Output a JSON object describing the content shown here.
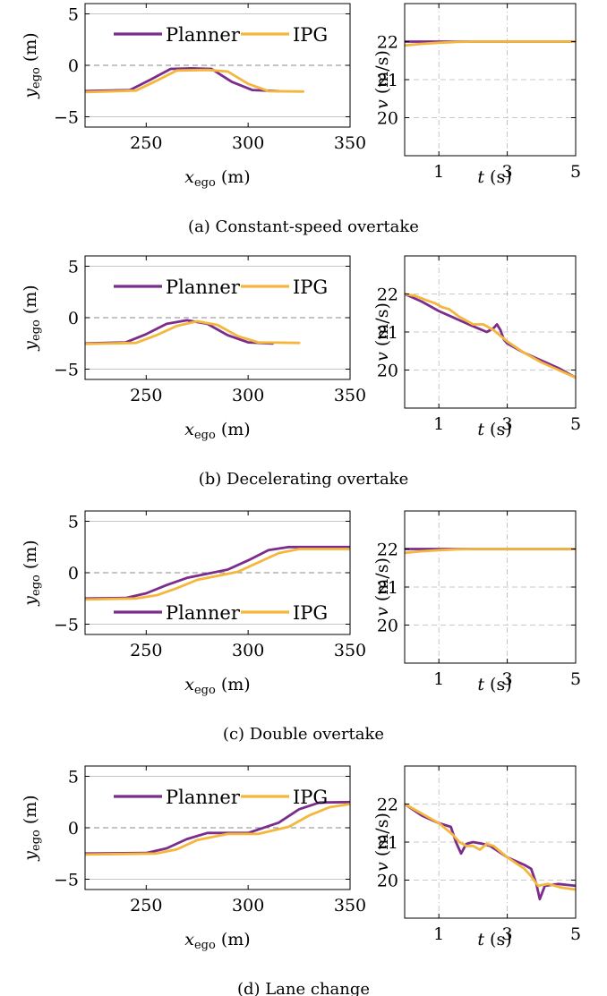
{
  "colors": {
    "planner": "#7B2D8B",
    "ipg": "#F5B63E"
  },
  "legend_labels": [
    "Planner",
    "IPG"
  ],
  "y_axis_label": {
    "main": "y",
    "sub": "ego",
    "unit": "(m)"
  },
  "x_axis_label": {
    "main": "x",
    "sub": "ego",
    "unit": "(m)"
  },
  "v_axis_label": {
    "main": "v",
    "unit": "(m/s)"
  },
  "t_axis_label": {
    "main": "t",
    "unit": "(s)"
  },
  "chart_data": [
    {
      "type": "line",
      "panel": "a",
      "kind": "position",
      "caption": "(a) Constant-speed overtake",
      "xlim": [
        220,
        350
      ],
      "ylim": [
        -6,
        6
      ],
      "xticks": [
        250,
        300,
        350
      ],
      "yticks": [
        -5,
        0,
        5
      ],
      "ytick_labels": [
        "−5",
        "0",
        "5"
      ],
      "legend": "top",
      "series": [
        {
          "name": "Planner",
          "points": [
            [
              220,
              -2.5
            ],
            [
              242,
              -2.4
            ],
            [
              252,
              -1.4
            ],
            [
              262,
              -0.35
            ],
            [
              272,
              -0.3
            ],
            [
              282,
              -0.35
            ],
            [
              292,
              -1.6
            ],
            [
              302,
              -2.4
            ],
            [
              315,
              -2.5
            ]
          ]
        },
        {
          "name": "IPG",
          "points": [
            [
              220,
              -2.6
            ],
            [
              245,
              -2.45
            ],
            [
              255,
              -1.5
            ],
            [
              265,
              -0.5
            ],
            [
              280,
              -0.45
            ],
            [
              290,
              -0.6
            ],
            [
              300,
              -1.8
            ],
            [
              310,
              -2.5
            ],
            [
              327,
              -2.55
            ]
          ]
        }
      ]
    },
    {
      "type": "line",
      "panel": "a",
      "kind": "velocity",
      "xlim": [
        0,
        5
      ],
      "ylim": [
        19,
        23
      ],
      "xticks": [
        1,
        3,
        5
      ],
      "yticks": [
        20,
        21,
        22
      ],
      "series": [
        {
          "name": "Planner",
          "points": [
            [
              0,
              22
            ],
            [
              1,
              22
            ],
            [
              2,
              22
            ],
            [
              3,
              22
            ],
            [
              4,
              22
            ],
            [
              5,
              22
            ]
          ]
        },
        {
          "name": "IPG",
          "points": [
            [
              0,
              21.9
            ],
            [
              0.5,
              21.94
            ],
            [
              1,
              21.97
            ],
            [
              1.5,
              21.99
            ],
            [
              2,
              22
            ],
            [
              3,
              22
            ],
            [
              4,
              22
            ],
            [
              5,
              22
            ]
          ]
        }
      ]
    },
    {
      "type": "line",
      "panel": "b",
      "kind": "position",
      "caption": "(b) Decelerating overtake",
      "xlim": [
        220,
        350
      ],
      "ylim": [
        -6,
        6
      ],
      "xticks": [
        250,
        300,
        350
      ],
      "yticks": [
        -5,
        0,
        5
      ],
      "ytick_labels": [
        "−5",
        "0",
        "5"
      ],
      "legend": "top",
      "series": [
        {
          "name": "Planner",
          "points": [
            [
              220,
              -2.5
            ],
            [
              240,
              -2.4
            ],
            [
              250,
              -1.6
            ],
            [
              260,
              -0.6
            ],
            [
              270,
              -0.25
            ],
            [
              280,
              -0.6
            ],
            [
              290,
              -1.7
            ],
            [
              300,
              -2.4
            ],
            [
              312,
              -2.5
            ]
          ]
        },
        {
          "name": "IPG",
          "points": [
            [
              220,
              -2.55
            ],
            [
              245,
              -2.45
            ],
            [
              255,
              -1.7
            ],
            [
              265,
              -0.8
            ],
            [
              275,
              -0.35
            ],
            [
              285,
              -0.7
            ],
            [
              295,
              -1.8
            ],
            [
              305,
              -2.4
            ],
            [
              325,
              -2.45
            ]
          ]
        }
      ]
    },
    {
      "type": "line",
      "panel": "b",
      "kind": "velocity",
      "xlim": [
        0,
        5
      ],
      "ylim": [
        19,
        23
      ],
      "xticks": [
        1,
        3,
        5
      ],
      "yticks": [
        20,
        21,
        22
      ],
      "series": [
        {
          "name": "Planner",
          "points": [
            [
              0,
              22
            ],
            [
              0.5,
              21.8
            ],
            [
              1,
              21.55
            ],
            [
              1.5,
              21.35
            ],
            [
              2,
              21.15
            ],
            [
              2.4,
              21.0
            ],
            [
              2.6,
              21.1
            ],
            [
              2.7,
              21.2
            ],
            [
              2.8,
              21.05
            ],
            [
              2.9,
              20.8
            ],
            [
              3,
              20.7
            ],
            [
              3.5,
              20.45
            ],
            [
              4,
              20.25
            ],
            [
              4.5,
              20.05
            ],
            [
              5,
              19.8
            ]
          ]
        },
        {
          "name": "IPG",
          "points": [
            [
              0,
              22
            ],
            [
              0.3,
              21.95
            ],
            [
              0.6,
              21.85
            ],
            [
              0.9,
              21.75
            ],
            [
              1.1,
              21.65
            ],
            [
              1.3,
              21.6
            ],
            [
              1.6,
              21.4
            ],
            [
              2,
              21.2
            ],
            [
              2.3,
              21.2
            ],
            [
              2.6,
              21.05
            ],
            [
              3,
              20.75
            ],
            [
              3.5,
              20.45
            ],
            [
              4,
              20.2
            ],
            [
              4.5,
              20.0
            ],
            [
              5,
              19.8
            ]
          ]
        }
      ]
    },
    {
      "type": "line",
      "panel": "c",
      "kind": "position",
      "caption": "(c) Double overtake",
      "xlim": [
        220,
        350
      ],
      "ylim": [
        -6,
        6
      ],
      "xticks": [
        250,
        300,
        350
      ],
      "yticks": [
        -5,
        0,
        5
      ],
      "ytick_labels": [
        "−5",
        "0",
        "5"
      ],
      "legend": "bottom",
      "series": [
        {
          "name": "Planner",
          "points": [
            [
              220,
              -2.5
            ],
            [
              240,
              -2.45
            ],
            [
              250,
              -2.0
            ],
            [
              260,
              -1.2
            ],
            [
              270,
              -0.5
            ],
            [
              280,
              -0.1
            ],
            [
              290,
              0.3
            ],
            [
              300,
              1.2
            ],
            [
              310,
              2.2
            ],
            [
              320,
              2.5
            ],
            [
              350,
              2.5
            ]
          ]
        },
        {
          "name": "IPG",
          "points": [
            [
              220,
              -2.6
            ],
            [
              245,
              -2.5
            ],
            [
              255,
              -2.2
            ],
            [
              265,
              -1.5
            ],
            [
              275,
              -0.7
            ],
            [
              285,
              -0.3
            ],
            [
              295,
              0.1
            ],
            [
              305,
              1.0
            ],
            [
              315,
              1.9
            ],
            [
              325,
              2.3
            ],
            [
              350,
              2.3
            ]
          ]
        }
      ]
    },
    {
      "type": "line",
      "panel": "c",
      "kind": "velocity",
      "xlim": [
        0,
        5
      ],
      "ylim": [
        19,
        23
      ],
      "xticks": [
        1,
        3,
        5
      ],
      "yticks": [
        20,
        21,
        22
      ],
      "series": [
        {
          "name": "Planner",
          "points": [
            [
              0,
              22
            ],
            [
              1,
              22
            ],
            [
              2,
              22
            ],
            [
              3,
              22
            ],
            [
              4,
              22
            ],
            [
              5,
              22
            ]
          ]
        },
        {
          "name": "IPG",
          "points": [
            [
              0,
              21.9
            ],
            [
              0.5,
              21.94
            ],
            [
              1,
              21.97
            ],
            [
              1.5,
              21.99
            ],
            [
              2,
              22
            ],
            [
              3,
              22
            ],
            [
              4,
              22
            ],
            [
              5,
              22
            ]
          ]
        }
      ]
    },
    {
      "type": "line",
      "panel": "d",
      "kind": "position",
      "caption": "(d) Lane change",
      "xlim": [
        220,
        350
      ],
      "ylim": [
        -6,
        6
      ],
      "xticks": [
        250,
        300,
        350
      ],
      "yticks": [
        -5,
        0,
        5
      ],
      "ytick_labels": [
        "−5",
        "0",
        "5"
      ],
      "legend": "top",
      "series": [
        {
          "name": "Planner",
          "points": [
            [
              220,
              -2.5
            ],
            [
              250,
              -2.45
            ],
            [
              260,
              -2.0
            ],
            [
              270,
              -1.1
            ],
            [
              280,
              -0.5
            ],
            [
              300,
              -0.5
            ],
            [
              315,
              0.5
            ],
            [
              325,
              1.8
            ],
            [
              335,
              2.45
            ],
            [
              350,
              2.5
            ]
          ]
        },
        {
          "name": "IPG",
          "points": [
            [
              220,
              -2.6
            ],
            [
              255,
              -2.5
            ],
            [
              265,
              -2.1
            ],
            [
              275,
              -1.2
            ],
            [
              290,
              -0.6
            ],
            [
              305,
              -0.6
            ],
            [
              320,
              0.1
            ],
            [
              330,
              1.2
            ],
            [
              340,
              2.0
            ],
            [
              350,
              2.3
            ]
          ]
        }
      ]
    },
    {
      "type": "line",
      "panel": "d",
      "kind": "velocity",
      "xlim": [
        0,
        5
      ],
      "ylim": [
        19,
        23
      ],
      "xticks": [
        1,
        3,
        5
      ],
      "yticks": [
        20,
        21,
        22
      ],
      "series": [
        {
          "name": "Planner",
          "points": [
            [
              0,
              22
            ],
            [
              0.5,
              21.7
            ],
            [
              1,
              21.5
            ],
            [
              1.35,
              21.4
            ],
            [
              1.5,
              21.0
            ],
            [
              1.65,
              20.7
            ],
            [
              1.8,
              20.95
            ],
            [
              2,
              21.0
            ],
            [
              2.3,
              20.95
            ],
            [
              2.5,
              20.9
            ],
            [
              3,
              20.6
            ],
            [
              3.5,
              20.4
            ],
            [
              3.7,
              20.3
            ],
            [
              3.85,
              19.9
            ],
            [
              3.95,
              19.5
            ],
            [
              4.1,
              19.85
            ],
            [
              4.5,
              19.9
            ],
            [
              5,
              19.85
            ]
          ]
        },
        {
          "name": "IPG",
          "points": [
            [
              0,
              22
            ],
            [
              0.3,
              21.85
            ],
            [
              0.6,
              21.7
            ],
            [
              1,
              21.5
            ],
            [
              1.4,
              21.2
            ],
            [
              1.6,
              21.0
            ],
            [
              1.8,
              20.9
            ],
            [
              2,
              20.9
            ],
            [
              2.2,
              20.8
            ],
            [
              2.4,
              20.95
            ],
            [
              2.6,
              20.9
            ],
            [
              3,
              20.6
            ],
            [
              3.5,
              20.3
            ],
            [
              3.7,
              20.1
            ],
            [
              3.9,
              19.85
            ],
            [
              4.2,
              19.9
            ],
            [
              4.6,
              19.8
            ],
            [
              5,
              19.75
            ]
          ]
        }
      ]
    }
  ]
}
